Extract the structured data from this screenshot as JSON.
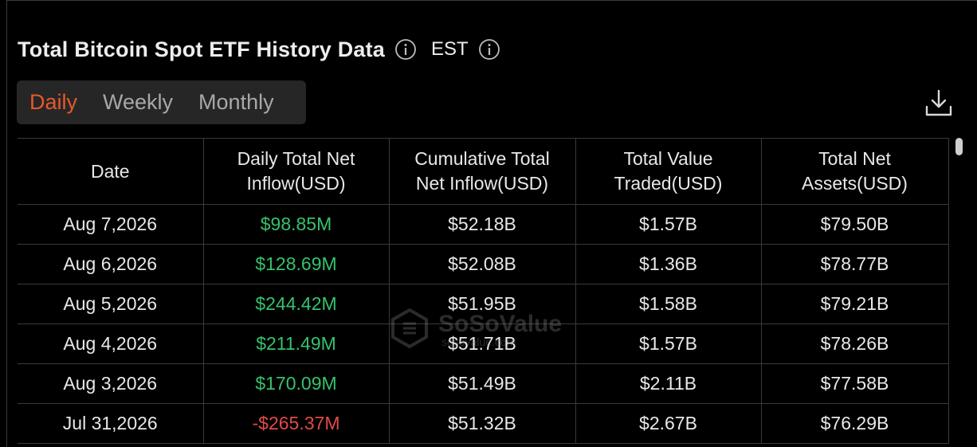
{
  "header": {
    "title": "Total Bitcoin Spot ETF History Data",
    "timezone": "EST"
  },
  "tabs": [
    {
      "label": "Daily",
      "active": true
    },
    {
      "label": "Weekly",
      "active": false
    },
    {
      "label": "Monthly",
      "active": false
    }
  ],
  "table": {
    "columns": [
      "Date",
      "Daily Total Net Inflow(USD)",
      "Cumulative Total Net Inflow(USD)",
      "Total Value Traded(USD)",
      "Total Net Assets(USD)"
    ],
    "rows": [
      {
        "date": "Aug 7,2026",
        "daily_inflow": "$98.85M",
        "cumulative": "$52.18B",
        "traded": "$1.57B",
        "net_assets": "$79.50B"
      },
      {
        "date": "Aug 6,2026",
        "daily_inflow": "$128.69M",
        "cumulative": "$52.08B",
        "traded": "$1.36B",
        "net_assets": "$78.77B"
      },
      {
        "date": "Aug 5,2026",
        "daily_inflow": "$244.42M",
        "cumulative": "$51.95B",
        "traded": "$1.58B",
        "net_assets": "$79.21B"
      },
      {
        "date": "Aug 4,2026",
        "daily_inflow": "$211.49M",
        "cumulative": "$51.71B",
        "traded": "$1.57B",
        "net_assets": "$78.26B"
      },
      {
        "date": "Aug 3,2026",
        "daily_inflow": "$170.09M",
        "cumulative": "$51.49B",
        "traded": "$2.11B",
        "net_assets": "$77.58B"
      },
      {
        "date": "Jul 31,2026",
        "daily_inflow": "-$265.37M",
        "cumulative": "$51.32B",
        "traded": "$2.67B",
        "net_assets": "$76.29B"
      }
    ]
  },
  "watermark": {
    "text": "SoSoValue",
    "sub": "sosovalue.com"
  },
  "colors": {
    "accent": "#e8582c",
    "positive": "#35c26d",
    "negative": "#e24b47",
    "background": "#000000"
  },
  "icons": {
    "info": "info-icon",
    "download": "download-icon"
  }
}
